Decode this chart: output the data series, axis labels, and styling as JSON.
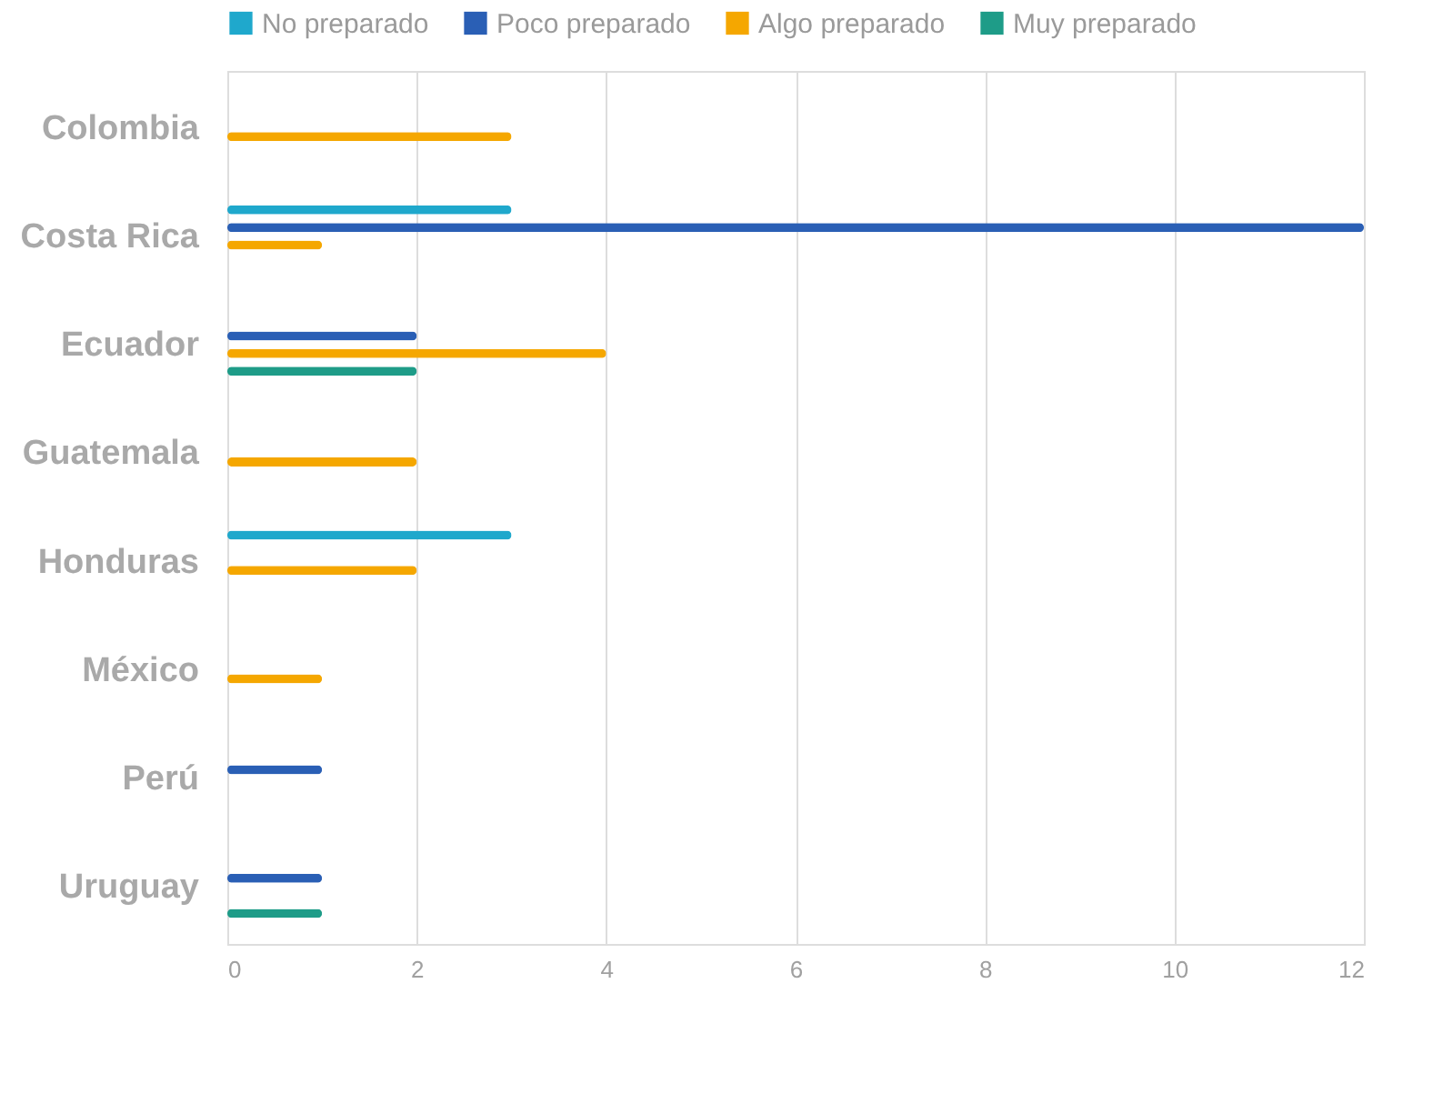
{
  "chart_data": {
    "type": "bar",
    "orientation": "horizontal",
    "categories": [
      "Colombia",
      "Costa Rica",
      "Ecuador",
      "Guatemala",
      "Honduras",
      "México",
      "Perú",
      "Uruguay"
    ],
    "series": [
      {
        "name": "No preparado",
        "color": "#1fa8cc",
        "values": [
          null,
          3,
          null,
          null,
          3,
          null,
          null,
          null
        ]
      },
      {
        "name": "Poco preparado",
        "color": "#2a5fb5",
        "values": [
          null,
          12,
          2,
          null,
          null,
          null,
          1,
          1
        ]
      },
      {
        "name": "Algo preparado",
        "color": "#f5a700",
        "values": [
          3,
          1,
          4,
          2,
          2,
          1,
          null,
          null
        ]
      },
      {
        "name": "Muy preparado",
        "color": "#1e9c88",
        "values": [
          null,
          null,
          2,
          null,
          null,
          null,
          null,
          1
        ]
      }
    ],
    "xlim": [
      0,
      12
    ],
    "xticks": [
      0,
      2,
      4,
      6,
      8,
      10,
      12
    ],
    "grid": "x",
    "legend": "top"
  }
}
